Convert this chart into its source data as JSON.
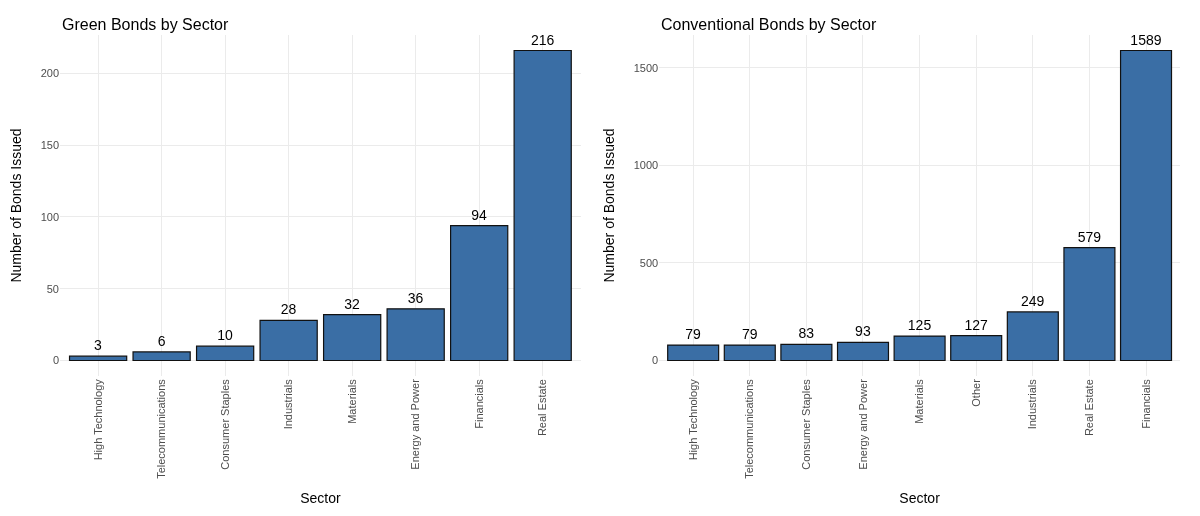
{
  "chart_data": [
    {
      "type": "bar",
      "title": "Green Bonds by Sector",
      "xlabel": "Sector",
      "ylabel": "Number of Bonds Issued",
      "categories": [
        "High Technology",
        "Telecommunications",
        "Consumer Staples",
        "Industrials",
        "Materials",
        "Energy and Power",
        "Financials",
        "Real Estate"
      ],
      "values": [
        3,
        6,
        10,
        28,
        32,
        36,
        94,
        216
      ],
      "color": "#3a6ea5",
      "ylim": [
        -10.8,
        226.8
      ],
      "yticks": [
        0,
        50,
        100,
        150,
        200
      ],
      "grid": true,
      "data_labels": true
    },
    {
      "type": "bar",
      "title": "Conventional Bonds by Sector",
      "xlabel": "Sector",
      "ylabel": "Number of Bonds Issued",
      "categories": [
        "High Technology",
        "Telecommunications",
        "Consumer Staples",
        "Energy and Power",
        "Materials",
        "Other",
        "Industrials",
        "Real Estate",
        "Financials"
      ],
      "values": [
        79,
        79,
        83,
        93,
        125,
        127,
        249,
        579,
        1589
      ],
      "color": "#3a6ea5",
      "ylim": [
        -79.45,
        1668.45
      ],
      "yticks": [
        0,
        500,
        1000,
        1500
      ],
      "grid": true,
      "data_labels": true
    }
  ]
}
